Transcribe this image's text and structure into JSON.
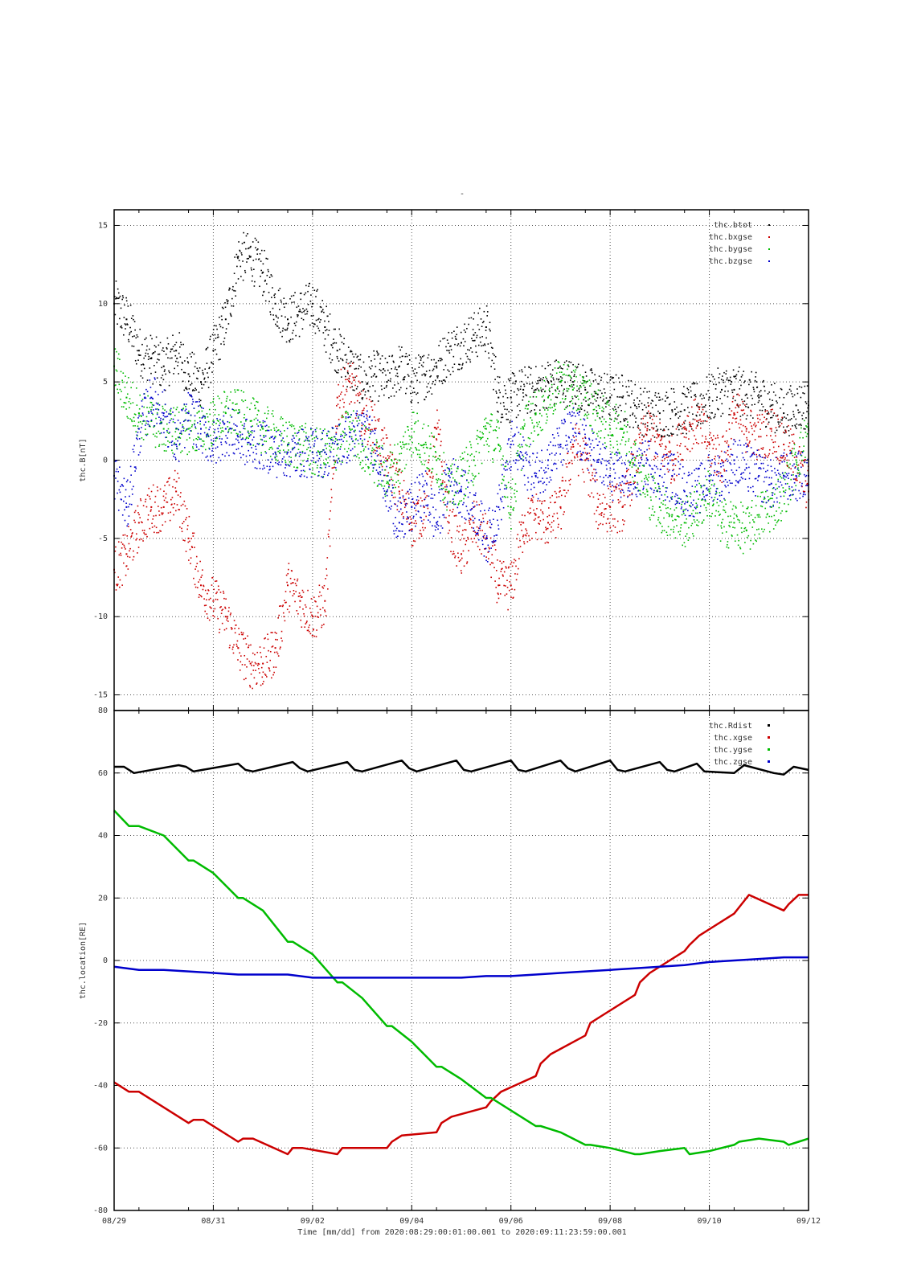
{
  "figure": {
    "title": "-",
    "xlabel": "Time [mm/dd]  from 2020:08:29:00:01:00.001  to  2020:09:11:23:59:00.001",
    "x_tick_labels": [
      "08/29",
      "08/31",
      "09/02",
      "09/04",
      "09/06",
      "09/08",
      "09/10",
      "09/12"
    ]
  },
  "chart_data": [
    {
      "type": "scatter",
      "ylabel": "thc.B[nT]",
      "xlim": [
        0,
        14
      ],
      "ylim": [
        -16,
        16
      ],
      "y_ticks": [
        -15,
        -10,
        -5,
        0,
        5,
        10,
        15
      ],
      "grid": true,
      "legend_position": "top-right",
      "x_unit": "days since 08/29",
      "series": [
        {
          "name": "thc.btot",
          "color": "#000000",
          "x": [
            0,
            0.25,
            0.5,
            0.75,
            1,
            1.25,
            1.5,
            1.75,
            2,
            2.25,
            2.5,
            2.75,
            3,
            3.25,
            3.5,
            3.75,
            4,
            4.25,
            4.5,
            4.75,
            5,
            5.25,
            5.5,
            5.75,
            6,
            6.25,
            6.5,
            6.75,
            7,
            7.25,
            7.5,
            7.75,
            8,
            8.25,
            8.5,
            8.75,
            9,
            9.25,
            9.5,
            9.75,
            10,
            10.25,
            10.5,
            10.75,
            11,
            11.25,
            11.5,
            11.75,
            12,
            12.25,
            12.5,
            12.75,
            13,
            13.25,
            13.5,
            13.75,
            14
          ],
          "y": [
            10,
            9,
            7,
            6.5,
            6,
            7,
            5.5,
            5,
            7,
            9,
            13,
            13,
            12,
            10,
            9,
            9.5,
            10,
            8.5,
            7,
            6,
            5,
            5.5,
            5,
            6,
            5,
            5.5,
            6,
            7,
            7.5,
            8,
            8.5,
            4,
            4,
            4.5,
            4.5,
            5,
            5,
            5,
            4.5,
            4.2,
            4,
            4,
            3.5,
            3,
            3,
            3.2,
            3.2,
            3.5,
            4,
            4.5,
            4.5,
            4.2,
            4,
            3.5,
            3,
            3.5,
            3.5
          ]
        },
        {
          "name": "thc.bxgse",
          "color": "#cc0000",
          "x": [
            0,
            0.25,
            0.5,
            0.75,
            1,
            1.25,
            1.5,
            1.75,
            2,
            2.25,
            2.5,
            2.75,
            3,
            3.25,
            3.5,
            3.75,
            4,
            4.25,
            4.5,
            4.75,
            5,
            5.25,
            5.5,
            5.75,
            6,
            6.25,
            6.5,
            6.75,
            7,
            7.25,
            7.5,
            7.75,
            8,
            8.25,
            8.5,
            8.75,
            9,
            9.25,
            9.5,
            9.75,
            10,
            10.25,
            10.5,
            10.75,
            11,
            11.25,
            11.5,
            11.75,
            12,
            12.25,
            12.5,
            12.75,
            13,
            13.25,
            13.5,
            13.75,
            14
          ],
          "y": [
            -7,
            -6,
            -4,
            -3,
            -3,
            -2,
            -5,
            -8,
            -9,
            -10,
            -12,
            -13,
            -13,
            -12,
            -8,
            -9,
            -10,
            -9,
            4,
            5,
            3,
            2,
            0,
            -2,
            -4,
            -3,
            2,
            -4,
            -6,
            -4,
            -5,
            -8,
            -8,
            -4,
            -3.5,
            -4,
            -3,
            1,
            0,
            -3,
            -3,
            -3,
            0,
            2,
            1,
            0,
            2,
            2.5,
            1,
            0,
            3,
            2,
            1.5,
            2,
            1,
            0,
            -2
          ]
        },
        {
          "name": "thc.bygse",
          "color": "#00bb00",
          "x": [
            0,
            0.25,
            0.5,
            0.75,
            1,
            1.25,
            1.5,
            1.75,
            2,
            2.25,
            2.5,
            2.75,
            3,
            3.25,
            3.5,
            3.75,
            4,
            4.25,
            4.5,
            4.75,
            5,
            5.25,
            5.5,
            5.75,
            6,
            6.25,
            6.5,
            6.75,
            7,
            7.25,
            7.5,
            7.75,
            8,
            8.25,
            8.5,
            8.75,
            9,
            9.25,
            9.5,
            9.75,
            10,
            10.25,
            10.5,
            10.75,
            11,
            11.25,
            11.5,
            11.75,
            12,
            12.25,
            12.5,
            12.75,
            13,
            13.25,
            13.5,
            13.75,
            14
          ],
          "y": [
            6,
            4,
            3,
            2.5,
            2,
            2,
            2,
            2,
            2.5,
            3,
            3,
            2.5,
            2,
            1.5,
            1,
            1,
            0.5,
            0.5,
            1,
            2,
            1,
            0,
            -1,
            0,
            2,
            1,
            0,
            -2,
            -1,
            0,
            2,
            1,
            -3,
            2,
            3,
            4,
            5,
            4.5,
            4,
            3,
            2,
            2,
            0,
            -2,
            -3,
            -3.5,
            -4,
            -3,
            -2,
            -4,
            -4,
            -4.5,
            -3.5,
            -3,
            -2,
            0,
            2
          ]
        },
        {
          "name": "thc.bzgse",
          "color": "#0000cc",
          "x": [
            0,
            0.25,
            0.5,
            0.75,
            1,
            1.25,
            1.5,
            1.75,
            2,
            2.25,
            2.5,
            2.75,
            3,
            3.25,
            3.5,
            3.75,
            4,
            4.25,
            4.5,
            4.75,
            5,
            5.25,
            5.5,
            5.75,
            6,
            6.25,
            6.5,
            6.75,
            7,
            7.25,
            7.5,
            7.75,
            8,
            8.25,
            8.5,
            8.75,
            9,
            9.25,
            9.5,
            9.75,
            10,
            10.25,
            10.5,
            10.75,
            11,
            11.25,
            11.5,
            11.75,
            12,
            12.25,
            12.5,
            12.75,
            13,
            13.25,
            13.5,
            13.75,
            14
          ],
          "y": [
            -1,
            -3,
            2,
            4,
            3,
            1,
            3,
            2,
            1,
            2,
            1.5,
            1,
            1,
            0.5,
            0.5,
            0.5,
            0.5,
            0.5,
            1,
            1.5,
            2,
            1,
            -2,
            -4,
            -3,
            -2,
            -4,
            -1,
            -2,
            -3,
            -5,
            -3,
            1,
            0,
            -1,
            0,
            1,
            2,
            1,
            0,
            -1,
            -1,
            -1,
            0,
            -1,
            -1,
            -2,
            -2,
            -1,
            -1,
            0,
            -0.5,
            -1,
            -1.5,
            -1,
            -1,
            -1
          ]
        }
      ]
    },
    {
      "type": "line",
      "ylabel": "thc.location[RE]",
      "xlim": [
        0,
        14
      ],
      "ylim": [
        -80,
        80
      ],
      "y_ticks": [
        -80,
        -60,
        -40,
        -20,
        0,
        20,
        40,
        60,
        80
      ],
      "grid": true,
      "legend_position": "top-right",
      "x_unit": "days since 08/29",
      "series": [
        {
          "name": "thc.Rdist",
          "color": "#000000",
          "x": [
            0,
            0.2,
            0.4,
            1.3,
            1.45,
            1.6,
            2.5,
            2.65,
            2.8,
            3.6,
            3.75,
            3.9,
            4.7,
            4.85,
            5.0,
            5.8,
            5.95,
            6.1,
            6.9,
            7.05,
            7.2,
            8.0,
            8.15,
            8.3,
            9.0,
            9.15,
            9.3,
            10.0,
            10.15,
            10.3,
            11.0,
            11.15,
            11.3,
            11.75,
            11.9,
            12.5,
            12.7,
            13.3,
            13.5,
            13.7,
            14
          ],
          "y": [
            62,
            62,
            60,
            62.5,
            62,
            60.5,
            63,
            61,
            60.5,
            63.5,
            61.5,
            60.5,
            63.5,
            61,
            60.5,
            64,
            61.5,
            60.5,
            64,
            61,
            60.5,
            64,
            61,
            60.5,
            64,
            61.5,
            60.5,
            64,
            61,
            60.5,
            63.5,
            61,
            60.5,
            63,
            60.5,
            60,
            62.5,
            60,
            59.5,
            62,
            61
          ]
        },
        {
          "name": "thc.xgse",
          "color": "#cc0000",
          "x": [
            0,
            0.3,
            0.5,
            1.5,
            1.6,
            1.8,
            2.5,
            2.6,
            2.8,
            3.5,
            3.6,
            3.8,
            4.5,
            4.6,
            4.8,
            5.5,
            5.6,
            5.8,
            6.5,
            6.6,
            6.8,
            7.5,
            7.6,
            7.8,
            8.5,
            8.6,
            8.8,
            9.5,
            9.6,
            9.8,
            10.5,
            10.6,
            10.8,
            11.5,
            11.6,
            11.8,
            12.5,
            12.6,
            12.8,
            13.5,
            13.6,
            13.8,
            14
          ],
          "y": [
            -39,
            -42,
            -42,
            -52,
            -51,
            -51,
            -58,
            -57,
            -57,
            -62,
            -60,
            -60,
            -62,
            -60,
            -60,
            -60,
            -58,
            -56,
            -55,
            -52,
            -50,
            -47,
            -45,
            -42,
            -37,
            -33,
            -30,
            -24,
            -20,
            -18,
            -11,
            -7,
            -4,
            3,
            5,
            8,
            15,
            17,
            21,
            16,
            18,
            21,
            21
          ]
        },
        {
          "name": "thc.ygse",
          "color": "#00bb00",
          "x": [
            0,
            0.3,
            0.5,
            1,
            1.5,
            1.6,
            2,
            2.5,
            2.6,
            3,
            3.5,
            3.6,
            4,
            4.5,
            4.6,
            5,
            5.5,
            5.6,
            6,
            6.5,
            6.6,
            7,
            7.5,
            7.6,
            8,
            8.5,
            8.6,
            9,
            9.5,
            9.6,
            10,
            10.5,
            10.6,
            11,
            11.5,
            11.6,
            12,
            12.5,
            12.6,
            13,
            13.5,
            13.6,
            13.8,
            14
          ],
          "y": [
            48,
            43,
            43,
            40,
            32,
            32,
            28,
            20,
            20,
            16,
            6,
            6,
            2,
            -7,
            -7,
            -12,
            -21,
            -21,
            -26,
            -34,
            -34,
            -38,
            -44,
            -44,
            -48,
            -53,
            -53,
            -55,
            -59,
            -59,
            -60,
            -62,
            -62,
            -61,
            -60,
            -62,
            -61,
            -59,
            -58,
            -57,
            -58,
            -59,
            -58,
            -57
          ]
        },
        {
          "name": "thc.zgse",
          "color": "#0000cc",
          "x": [
            0,
            0.5,
            1,
            1.5,
            2,
            2.5,
            3,
            3.5,
            4,
            4.5,
            5,
            5.5,
            6,
            6.5,
            7,
            7.5,
            8,
            8.5,
            9,
            9.5,
            10,
            10.5,
            11,
            11.5,
            12,
            12.5,
            13,
            13.5,
            14
          ],
          "y": [
            -2,
            -3,
            -3,
            -3.5,
            -4,
            -4.5,
            -4.5,
            -4.5,
            -5.5,
            -5.5,
            -5.5,
            -5.5,
            -5.5,
            -5.5,
            -5.5,
            -5,
            -5,
            -4.5,
            -4,
            -3.5,
            -3,
            -2.5,
            -2,
            -1.5,
            -0.5,
            0,
            0.5,
            1,
            1
          ]
        }
      ]
    }
  ]
}
